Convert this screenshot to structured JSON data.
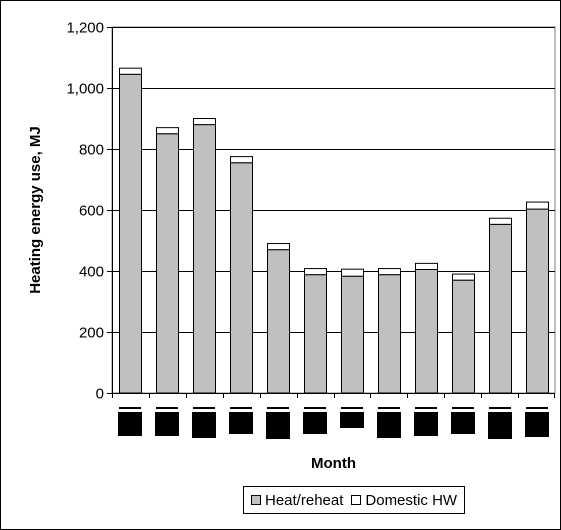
{
  "chart_data": {
    "type": "bar",
    "stacked": true,
    "categories": [
      "",
      "",
      "",
      "",
      "",
      "",
      "",
      "",
      "",
      "",
      "",
      ""
    ],
    "series": [
      {
        "name": "Heat/reheat",
        "color": "#c0c0c0",
        "values": [
          1045,
          850,
          880,
          755,
          470,
          388,
          383,
          388,
          405,
          370,
          553,
          603
        ]
      },
      {
        "name": "Domestic HW",
        "color": "#ffffff",
        "values": [
          20,
          20,
          20,
          20,
          20,
          20,
          23,
          20,
          20,
          20,
          20,
          23
        ]
      }
    ],
    "title": "",
    "xlabel": "Month",
    "ylabel": "Heating energy use, MJ",
    "ylim": [
      0,
      1200
    ],
    "yticks": [
      0,
      200,
      400,
      600,
      800,
      1000,
      1200
    ],
    "ytick_labels": [
      "0",
      "200",
      "400",
      "600",
      "800",
      "1,000",
      "1,200"
    ],
    "grid": "horizontal",
    "legend": "bottom",
    "colors": {
      "plot_background": "#ffffff",
      "gridline": "#000000",
      "tick_label_redaction": "#000000"
    }
  }
}
